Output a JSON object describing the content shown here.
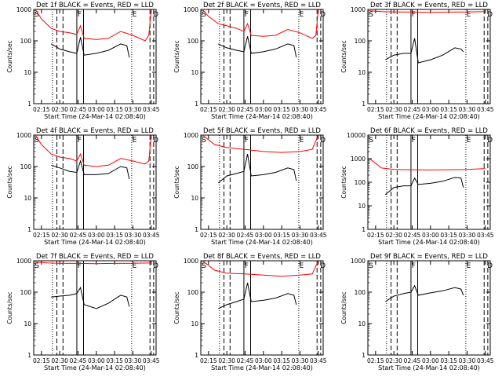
{
  "chart_data": [
    {
      "type": "line",
      "title": "Det 1f BLACK = Events, RED = LLD",
      "xlabel": "Start Time (24-Mar-14 02:08:40)",
      "ylabel": "Counts/sec",
      "yscale": "log",
      "ylim": [
        1,
        1000
      ],
      "xlim": [
        "02:08:40",
        "03:49:00"
      ],
      "x_ticks": [
        "02:15",
        "02:30",
        "02:45",
        "03:00",
        "03:15",
        "03:30",
        "03:45"
      ],
      "y_ticks": [
        "1",
        "10",
        "100",
        "1000"
      ],
      "markers": [
        "S",
        "F",
        "E",
        "D"
      ],
      "series": [
        {
          "name": "BLACK = Events",
          "color": "#000000",
          "x": [
            "02:23",
            "02:30",
            "02:38",
            "02:44",
            "02:47",
            "02:50",
            "03:00",
            "03:10",
            "03:20",
            "03:25",
            "03:27"
          ],
          "values": [
            80,
            55,
            45,
            40,
            130,
            35,
            40,
            50,
            80,
            70,
            30
          ]
        },
        {
          "name": "RED = LLD",
          "color": "#ff0000",
          "x": [
            "02:10",
            "02:15",
            "02:23",
            "02:30",
            "02:38",
            "02:44",
            "02:47",
            "02:50",
            "03:00",
            "03:10",
            "03:20",
            "03:30",
            "03:40",
            "03:43",
            "03:45"
          ],
          "values": [
            1000,
            500,
            250,
            200,
            180,
            160,
            300,
            120,
            110,
            120,
            200,
            150,
            100,
            150,
            1000
          ]
        }
      ]
    },
    {
      "type": "line",
      "title": "Det 2f BLACK = Events, RED = LLD",
      "xlabel": "Start Time (24-Mar-14 02:08:40)",
      "ylabel": "Counts/sec",
      "yscale": "log",
      "ylim": [
        1,
        1000
      ],
      "xlim": [
        "02:08:40",
        "03:49:00"
      ],
      "x_ticks": [
        "02:15",
        "02:30",
        "02:45",
        "03:00",
        "03:15",
        "03:30",
        "03:45"
      ],
      "y_ticks": [
        "1",
        "10",
        "100",
        "1000"
      ],
      "markers": [
        "S",
        "F",
        "E",
        "D"
      ],
      "series": [
        {
          "name": "BLACK = Events",
          "color": "#000000",
          "x": [
            "02:23",
            "02:30",
            "02:38",
            "02:44",
            "02:47",
            "02:50",
            "03:00",
            "03:10",
            "03:20",
            "03:25",
            "03:27"
          ],
          "values": [
            80,
            60,
            50,
            45,
            140,
            40,
            45,
            55,
            80,
            70,
            30
          ]
        },
        {
          "name": "RED = LLD",
          "color": "#ff0000",
          "x": [
            "02:10",
            "02:15",
            "02:23",
            "02:30",
            "02:38",
            "02:44",
            "02:47",
            "02:50",
            "03:00",
            "03:10",
            "03:20",
            "03:30",
            "03:40",
            "03:43",
            "03:45"
          ],
          "values": [
            1000,
            600,
            350,
            300,
            250,
            200,
            350,
            150,
            140,
            150,
            230,
            180,
            120,
            150,
            1000
          ]
        }
      ]
    },
    {
      "type": "line",
      "title": "Det 3f BLACK = Events, RED = LLD",
      "xlabel": "Start Time (24-Mar-14 02:08:40)",
      "ylabel": "Counts/sec",
      "yscale": "log",
      "ylim": [
        1,
        1000
      ],
      "xlim": [
        "02:08:40",
        "03:49:00"
      ],
      "x_ticks": [
        "02:15",
        "02:30",
        "02:45",
        "03:00",
        "03:15",
        "03:30",
        "03:45"
      ],
      "y_ticks": [
        "1",
        "10",
        "100",
        "1000"
      ],
      "markers": [
        "S",
        "F",
        "E",
        "D"
      ],
      "series": [
        {
          "name": "BLACK = Events",
          "color": "#000000",
          "x": [
            "02:23",
            "02:30",
            "02:38",
            "02:44",
            "02:47",
            "02:50",
            "03:00",
            "03:10",
            "03:20",
            "03:25",
            "03:27"
          ],
          "values": [
            25,
            35,
            40,
            40,
            120,
            20,
            25,
            35,
            60,
            55,
            45
          ]
        },
        {
          "name": "RED = LLD",
          "color": "#ff0000",
          "x": [
            "02:10",
            "02:20",
            "02:30",
            "02:45",
            "03:00",
            "03:15",
            "03:30",
            "03:45"
          ],
          "values": [
            900,
            850,
            830,
            820,
            810,
            820,
            830,
            850
          ]
        }
      ]
    },
    {
      "type": "line",
      "title": "Det 4f BLACK = Events, RED = LLD",
      "xlabel": "Start Time (24-Mar-14 02:08:40)",
      "ylabel": "Counts/sec",
      "yscale": "log",
      "ylim": [
        1,
        1000
      ],
      "xlim": [
        "02:08:40",
        "03:49:00"
      ],
      "x_ticks": [
        "02:15",
        "02:30",
        "02:45",
        "03:00",
        "03:15",
        "03:30",
        "03:45"
      ],
      "y_ticks": [
        "1",
        "10",
        "100",
        "1000"
      ],
      "markers": [
        "S",
        "F",
        "E",
        "D"
      ],
      "series": [
        {
          "name": "BLACK = Events",
          "color": "#000000",
          "x": [
            "02:23",
            "02:30",
            "02:38",
            "02:44",
            "02:47",
            "02:50",
            "03:00",
            "03:10",
            "03:20",
            "03:25",
            "03:27"
          ],
          "values": [
            110,
            90,
            70,
            65,
            150,
            55,
            55,
            60,
            100,
            90,
            40
          ]
        },
        {
          "name": "RED = LLD",
          "color": "#ff0000",
          "x": [
            "02:10",
            "02:15",
            "02:23",
            "02:30",
            "02:38",
            "02:44",
            "02:47",
            "02:50",
            "03:00",
            "03:10",
            "03:20",
            "03:30",
            "03:40",
            "03:43",
            "03:45"
          ],
          "values": [
            1000,
            500,
            250,
            200,
            180,
            150,
            250,
            110,
            100,
            110,
            180,
            150,
            120,
            150,
            1000
          ]
        }
      ]
    },
    {
      "type": "line",
      "title": "Det 5f BLACK = Events, RED = LLD",
      "xlabel": "Start Time (24-Mar-14 02:08:40)",
      "ylabel": "Counts/sec",
      "yscale": "log",
      "ylim": [
        1,
        1000
      ],
      "xlim": [
        "02:08:40",
        "03:49:00"
      ],
      "x_ticks": [
        "02:15",
        "02:30",
        "02:45",
        "03:00",
        "03:15",
        "03:30",
        "03:45"
      ],
      "y_ticks": [
        "1",
        "10",
        "100",
        "1000"
      ],
      "markers": [
        "S",
        "F",
        "E",
        "D"
      ],
      "series": [
        {
          "name": "BLACK = Events",
          "color": "#000000",
          "x": [
            "02:23",
            "02:30",
            "02:38",
            "02:44",
            "02:47",
            "02:50",
            "03:00",
            "03:10",
            "03:20",
            "03:25",
            "03:27"
          ],
          "values": [
            30,
            50,
            60,
            70,
            250,
            50,
            55,
            65,
            90,
            80,
            35
          ]
        },
        {
          "name": "RED = LLD",
          "color": "#ff0000",
          "x": [
            "02:10",
            "02:20",
            "02:30",
            "02:45",
            "03:00",
            "03:15",
            "03:30",
            "03:40",
            "03:45"
          ],
          "values": [
            1000,
            500,
            400,
            350,
            300,
            280,
            300,
            350,
            1000
          ]
        }
      ]
    },
    {
      "type": "line",
      "title": "Det 6f BLACK = Events, RED = LLD",
      "xlabel": "Start Time (24-Mar-14 02:08:40)",
      "ylabel": "Counts/sec",
      "yscale": "log",
      "ylim": [
        1,
        10000
      ],
      "xlim": [
        "02:08:40",
        "03:49:00"
      ],
      "x_ticks": [
        "02:15",
        "02:30",
        "02:45",
        "03:00",
        "03:15",
        "03:30",
        "03:45"
      ],
      "y_ticks": [
        "1",
        "10",
        "100",
        "1000",
        "10000"
      ],
      "markers": [
        "S",
        "F",
        "E",
        "D"
      ],
      "series": [
        {
          "name": "BLACK = Events",
          "color": "#000000",
          "x": [
            "02:23",
            "02:30",
            "02:38",
            "02:44",
            "02:47",
            "02:50",
            "03:00",
            "03:10",
            "03:20",
            "03:25",
            "03:27"
          ],
          "values": [
            30,
            60,
            70,
            70,
            150,
            80,
            90,
            110,
            160,
            150,
            60
          ]
        },
        {
          "name": "RED = LLD",
          "color": "#ff0000",
          "x": [
            "02:10",
            "02:20",
            "02:30",
            "02:45",
            "03:00",
            "03:15",
            "03:30",
            "03:45"
          ],
          "values": [
            1000,
            400,
            350,
            340,
            330,
            340,
            350,
            380
          ]
        }
      ]
    },
    {
      "type": "line",
      "title": "Det 7f BLACK = Events, RED = LLD",
      "xlabel": "Start Time (24-Mar-14 02:08:40)",
      "ylabel": "Counts/sec",
      "yscale": "log",
      "ylim": [
        1,
        1000
      ],
      "xlim": [
        "02:08:40",
        "03:49:00"
      ],
      "x_ticks": [
        "02:15",
        "02:30",
        "02:45",
        "03:00",
        "03:15",
        "03:30",
        "03:45"
      ],
      "y_ticks": [
        "1",
        "10",
        "100",
        "1000"
      ],
      "markers": [
        "S",
        "F",
        "E",
        "D"
      ],
      "series": [
        {
          "name": "BLACK = Events",
          "color": "#000000",
          "x": [
            "02:23",
            "02:30",
            "02:38",
            "02:44",
            "02:47",
            "02:50",
            "03:00",
            "03:10",
            "03:20",
            "03:25",
            "03:27"
          ],
          "values": [
            70,
            75,
            80,
            90,
            140,
            40,
            30,
            45,
            80,
            70,
            35
          ]
        },
        {
          "name": "RED = LLD",
          "color": "#ff0000",
          "x": [
            "02:10",
            "02:20",
            "02:30",
            "02:45",
            "03:00",
            "03:15",
            "03:30",
            "03:45"
          ],
          "values": [
            900,
            850,
            830,
            820,
            810,
            820,
            830,
            850
          ]
        }
      ]
    },
    {
      "type": "line",
      "title": "Det 8f BLACK = Events, RED = LLD",
      "xlabel": "Start Time (24-Mar-14 02:08:40)",
      "ylabel": "Counts/sec",
      "yscale": "log",
      "ylim": [
        1,
        1000
      ],
      "xlim": [
        "02:08:40",
        "03:49:00"
      ],
      "x_ticks": [
        "02:15",
        "02:30",
        "02:45",
        "03:00",
        "03:15",
        "03:30",
        "03:45"
      ],
      "y_ticks": [
        "1",
        "10",
        "100",
        "1000"
      ],
      "markers": [
        "S",
        "F",
        "E",
        "D"
      ],
      "series": [
        {
          "name": "BLACK = Events",
          "color": "#000000",
          "x": [
            "02:23",
            "02:30",
            "02:38",
            "02:44",
            "02:47",
            "02:50",
            "03:00",
            "03:10",
            "03:20",
            "03:25",
            "03:27"
          ],
          "values": [
            30,
            40,
            50,
            60,
            200,
            50,
            55,
            65,
            90,
            80,
            40
          ]
        },
        {
          "name": "RED = LLD",
          "color": "#ff0000",
          "x": [
            "02:10",
            "02:20",
            "02:30",
            "02:45",
            "03:00",
            "03:15",
            "03:30",
            "03:40",
            "03:45"
          ],
          "values": [
            1000,
            500,
            400,
            380,
            350,
            320,
            350,
            380,
            1000
          ]
        }
      ]
    },
    {
      "type": "line",
      "title": "Det 9f BLACK = Events, RED = LLD",
      "xlabel": "Start Time (24-Mar-14 02:08:40)",
      "ylabel": "Counts/sec",
      "yscale": "log",
      "ylim": [
        1,
        1000
      ],
      "xlim": [
        "02:08:40",
        "03:49:00"
      ],
      "x_ticks": [
        "02:15",
        "02:30",
        "02:45",
        "03:00",
        "03:15",
        "03:30",
        "03:45"
      ],
      "y_ticks": [
        "1",
        "10",
        "100",
        "1000"
      ],
      "markers": [
        "S",
        "F",
        "E",
        "D"
      ],
      "series": [
        {
          "name": "BLACK = Events",
          "color": "#000000",
          "x": [
            "02:23",
            "02:30",
            "02:38",
            "02:44",
            "02:47",
            "02:50",
            "03:00",
            "03:10",
            "03:20",
            "03:25",
            "03:27"
          ],
          "values": [
            50,
            75,
            90,
            100,
            160,
            80,
            95,
            110,
            140,
            125,
            80
          ]
        },
        {
          "name": "RED = LLD",
          "color": "#ff0000",
          "x": [],
          "values": []
        }
      ]
    }
  ]
}
